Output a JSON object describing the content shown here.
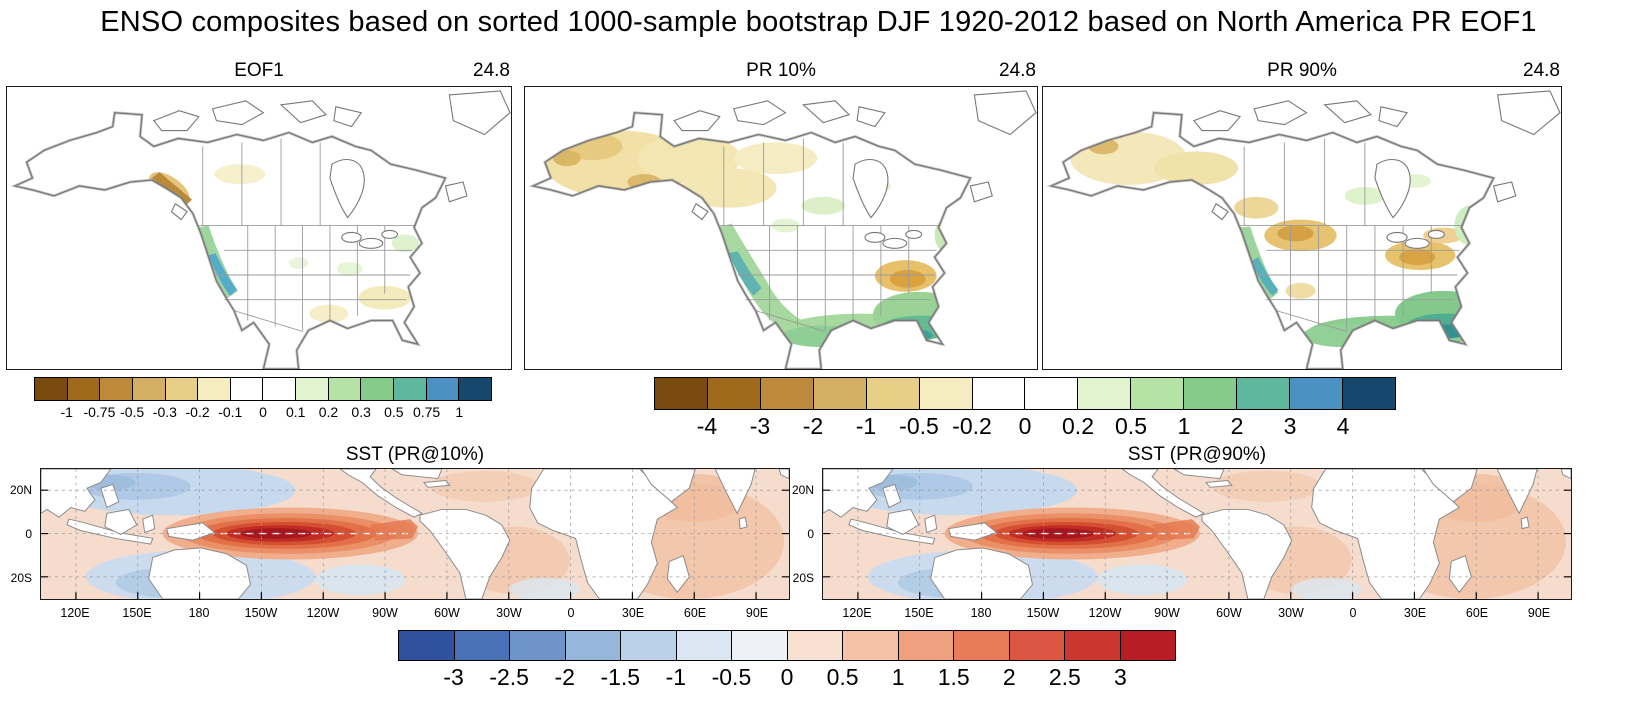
{
  "title": "ENSO composites based on sorted 1000-sample bootstrap DJF 1920-2012 based on North America PR EOF1",
  "panels": {
    "eof1": {
      "label": "EOF1",
      "value": "24.8"
    },
    "pr10": {
      "label": "PR 10%",
      "value": "24.8"
    },
    "pr90": {
      "label": "PR 90%",
      "value": "24.8"
    },
    "sst10": {
      "label": "SST (PR@10%)"
    },
    "sst90": {
      "label": "SST (PR@90%)"
    }
  },
  "sst_axes": {
    "lat_ticks": [
      "20N",
      "0",
      "20S"
    ],
    "lon_ticks": [
      "120E",
      "150E",
      "180",
      "150W",
      "120W",
      "90W",
      "60W",
      "30W",
      "0",
      "30E",
      "60E",
      "90E"
    ]
  },
  "colorbars": {
    "eof": {
      "ticks": [
        "-1",
        "-0.75",
        "-0.5",
        "-0.3",
        "-0.2",
        "-0.1",
        "0",
        "0.1",
        "0.2",
        "0.3",
        "0.5",
        "0.75",
        "1"
      ],
      "colors": [
        "#7a4a0f",
        "#a06a1c",
        "#bd8a3c",
        "#d4ae62",
        "#e8cf88",
        "#f5ecc0",
        "#ffffff",
        "#ffffff",
        "#e2f3cf",
        "#b5e2a5",
        "#85cc8b",
        "#5fb79d",
        "#4b92c3",
        "#16486e"
      ]
    },
    "pr": {
      "ticks": [
        "-4",
        "-3",
        "-2",
        "-1",
        "-0.5",
        "-0.2",
        "0",
        "0.2",
        "0.5",
        "1",
        "2",
        "3",
        "4"
      ],
      "colors": [
        "#7a4a0f",
        "#a06a1c",
        "#bd8a3c",
        "#d4ae62",
        "#e8cf88",
        "#f5ecc0",
        "#ffffff",
        "#ffffff",
        "#e2f3cf",
        "#b5e2a5",
        "#85cc8b",
        "#5fb79d",
        "#4b92c3",
        "#16486e"
      ]
    },
    "sst": {
      "ticks": [
        "-3",
        "-2.5",
        "-2",
        "-1.5",
        "-1",
        "-0.5",
        "0",
        "0.5",
        "1",
        "1.5",
        "2",
        "2.5",
        "3"
      ],
      "colors": [
        "#30519d",
        "#4a72b7",
        "#6f94ca",
        "#96b6dc",
        "#bad1e9",
        "#dbe6f3",
        "#eef2f7",
        "#f8e0d3",
        "#f5c2a7",
        "#efa07f",
        "#e87c5a",
        "#dc5742",
        "#cb362e",
        "#b81d26"
      ]
    }
  },
  "chart_data": [
    {
      "type": "heatmap",
      "panel": "EOF1",
      "annotation_top_right": "24.8",
      "region": "North America",
      "colorbar_ticks": [
        -1,
        -0.75,
        -0.5,
        -0.3,
        -0.2,
        -0.1,
        0,
        0.1,
        0.2,
        0.3,
        0.5,
        0.75,
        1
      ],
      "features": [
        "narrow positive (green to blue, 0.3 to >0.75) band along the US Pacific coast, strongest over coastal California",
        "negative (brown, -0.3 to -0.75) along the southeast Alaska / British Columbia coast",
        "weak positive (0.1-0.2) patches over the upper Midwest, Great Lakes and mid-Atlantic",
        "weak negative (-0.1 to -0.2) patches over Texas and the Southeast",
        "near zero over most of Canada and the interior"
      ]
    },
    {
      "type": "heatmap",
      "panel": "PR 10%",
      "annotation_top_right": "24.8",
      "region": "North America",
      "colorbar_ticks": [
        -4,
        -3,
        -2,
        -1,
        -0.5,
        -0.2,
        0,
        0.2,
        0.5,
        1,
        2,
        3,
        4
      ],
      "features": [
        "negative (yellow-tan, -0.2 to -1) anomalies over Alaska, Yukon and western Canada",
        "positive (green, 0.2-1) band along the US West Coast extending into the Southwest",
        "positive (green, 0.5-2, locally teal >2) across Texas, the Gulf Coast, Florida and the Southeast",
        "negative (orange, -0.5 to -2) patch over the Ohio Valley / Appalachians",
        "scattered weak positive patches over central and eastern Canada"
      ]
    },
    {
      "type": "heatmap",
      "panel": "PR 90%",
      "annotation_top_right": "24.8",
      "region": "North America",
      "colorbar_ticks": [
        -4,
        -3,
        -2,
        -1,
        -0.5,
        -0.2,
        0,
        0.2,
        0.5,
        1,
        2,
        3,
        4
      ],
      "features": [
        "weak negative (yellow, -0.2 to -0.5) anomalies over Alaska and northwest Canada",
        "negative (orange, -0.5 to -2) patches over the northern Rockies / Prairies and the Great Lakes / Ohio Valley",
        "positive (green) band along the Pacific coast",
        "strong positive (green to teal, 1 to >2) anomalies across Texas, the Gulf Coast and the Southeast",
        "weak positive patches over eastern Canada and the Northeast"
      ]
    },
    {
      "type": "heatmap",
      "panel": "SST (PR@10%)",
      "region": "global tropics",
      "lat_range": [
        "30S",
        "30N"
      ],
      "lat_ticks": [
        "20N",
        "0",
        "20S"
      ],
      "lon_ticks": [
        "120E",
        "150E",
        "180",
        "150W",
        "120W",
        "90W",
        "60W",
        "30W",
        "0",
        "30E",
        "60E",
        "90E"
      ],
      "colorbar_ticks": [
        -3,
        -2.5,
        -2,
        -1.5,
        -1,
        -0.5,
        0,
        0.5,
        1,
        1.5,
        2,
        2.5,
        3
      ],
      "features": [
        "strong El Nino warm tongue (2.5 to >3) along the equatorial central-eastern Pacific from ~160E to the South American coast",
        "horseshoe of weak cold anomalies (-0.5 to -1) in the western North Pacific and southwest Pacific",
        "weak cold anomalies in the subtropical southeast Pacific",
        "weak warm anomalies (0.5-1) across the Indian Ocean and tropical Atlantic"
      ]
    },
    {
      "type": "heatmap",
      "panel": "SST (PR@90%)",
      "region": "global tropics",
      "lat_range": [
        "30S",
        "30N"
      ],
      "lat_ticks": [
        "20N",
        "0",
        "20S"
      ],
      "lon_ticks": [
        "120E",
        "150E",
        "180",
        "150W",
        "120W",
        "90W",
        "60W",
        "30W",
        "0",
        "30E",
        "60E",
        "90E"
      ],
      "colorbar_ticks": [
        -3,
        -2.5,
        -2,
        -1.5,
        -1,
        -0.5,
        0,
        0.5,
        1,
        1.5,
        2,
        2.5,
        3
      ],
      "features": [
        "strong El Nino warm tongue (2.5 to >3) along the equatorial central-eastern Pacific, nearly identical to the PR@10% composite",
        "weak cold horseshoe in the western North and South Pacific",
        "weak warm anomalies across the Indian Ocean and tropical Atlantic"
      ]
    }
  ]
}
